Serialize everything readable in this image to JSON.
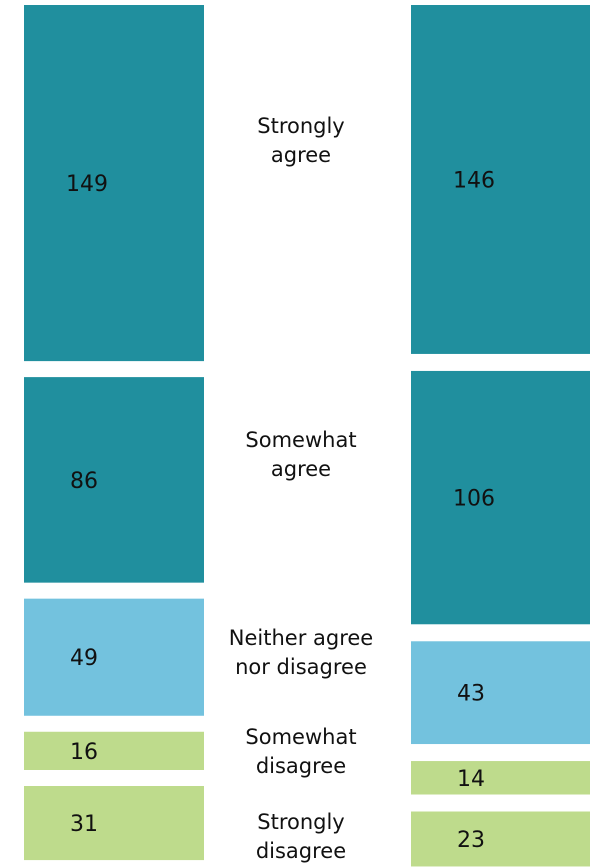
{
  "chart_data": {
    "type": "bar",
    "orientation": "stacked-vertical-paired",
    "categories": [
      "Strongly\nagree",
      "Somewhat\nagree",
      "Neither agree\nnor disagree",
      "Somewhat\ndisagree",
      "Strongly\ndisagree"
    ],
    "series": [
      {
        "values": [
          149,
          86,
          49,
          16,
          31
        ]
      },
      {
        "values": [
          146,
          106,
          43,
          14,
          23
        ]
      }
    ],
    "colors": [
      "#208f9e",
      "#208f9e",
      "#73c2de",
      "#bedb8c",
      "#bedb8c"
    ],
    "grid": false,
    "legend": "none"
  }
}
